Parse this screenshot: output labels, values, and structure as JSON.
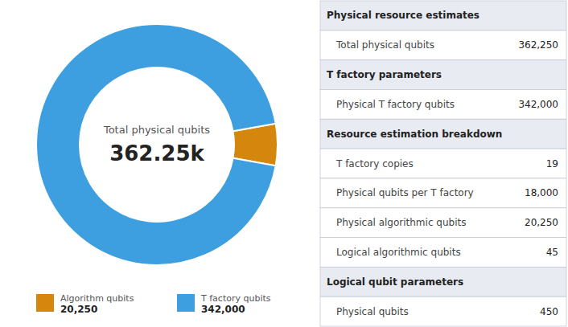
{
  "chart_data": [
    {
      "type": "pie",
      "categories": [
        "Algorithm qubits",
        "T factory qubits"
      ],
      "values": [
        20250,
        342000
      ],
      "value_labels": [
        "20,250",
        "342,000"
      ],
      "colors": [
        "#d4870c",
        "#3d9fe0"
      ],
      "annotations": [
        "Total physical qubits",
        "362.25k"
      ],
      "legend": "bottom"
    },
    {
      "type": "table",
      "sections": [
        {
          "title": "Physical resource estimates",
          "categories": [
            "Total physical qubits"
          ],
          "values": [
            362250
          ],
          "value_labels": [
            "362,250"
          ]
        },
        {
          "title": "T factory parameters",
          "categories": [
            "Physical T factory qubits"
          ],
          "values": [
            342000
          ],
          "value_labels": [
            "342,000"
          ]
        },
        {
          "title": "Resource estimation breakdown",
          "categories": [
            "T factory copies",
            "Physical qubits per T factory",
            "Physical algorithmic qubits",
            "Logical algorithmic qubits"
          ],
          "values": [
            19,
            18000,
            20250,
            45
          ],
          "value_labels": [
            "19",
            "18,000",
            "20,250",
            "45"
          ]
        },
        {
          "title": "Logical qubit parameters",
          "categories": [
            "Physical qubits"
          ],
          "values": [
            450
          ],
          "value_labels": [
            "450"
          ]
        }
      ]
    }
  ]
}
